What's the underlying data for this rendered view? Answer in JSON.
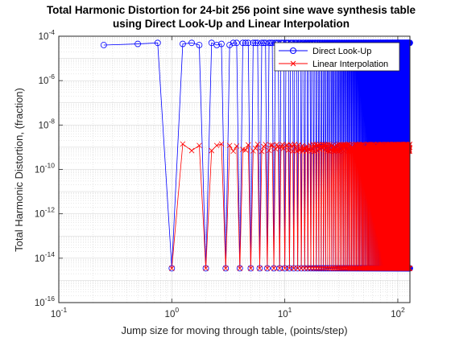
{
  "chart_data": {
    "type": "line",
    "title_line1": "Total Harmonic Distortion for 24-bit 256 point sine wave synthesis table",
    "title_line2": "using Direct Look-Up and Linear Interpolation",
    "xlabel": "Jump size for moving through table, (points/step)",
    "ylabel": "Total Harmonic Distortion, (fraction)",
    "xscale": "log",
    "yscale": "log",
    "xlim": [
      0.1,
      128
    ],
    "ylim": [
      1e-16,
      0.0001
    ],
    "x_ticks": [
      {
        "value": 0.1,
        "label": "10",
        "exp": "-1"
      },
      {
        "value": 1,
        "label": "10",
        "exp": "0"
      },
      {
        "value": 10,
        "label": "10",
        "exp": "1"
      },
      {
        "value": 100,
        "label": "10",
        "exp": "2"
      }
    ],
    "y_ticks": [
      {
        "value": 1e-16,
        "label": "10",
        "exp": "-16"
      },
      {
        "value": 1e-14,
        "label": "10",
        "exp": "-14"
      },
      {
        "value": 1e-12,
        "label": "10",
        "exp": "-12"
      },
      {
        "value": 1e-10,
        "label": "10",
        "exp": "-10"
      },
      {
        "value": 1e-08,
        "label": "10",
        "exp": "-8"
      },
      {
        "value": 1e-06,
        "label": "10",
        "exp": "-6"
      },
      {
        "value": 0.0001,
        "label": "10",
        "exp": "-4"
      }
    ],
    "grid": true,
    "minor_grid": true,
    "legend_position": "top-right",
    "series": [
      {
        "name": "Direct Look-Up",
        "color": "#0000ff",
        "marker": "circle",
        "description_of_pattern": "sample at every quarter step from 0.25 to 128; integer jump sizes give ~3.5e-15, others ~3e-5 to 5e-5",
        "low_value": 3.5e-15,
        "high_values_first": [
          5e-05,
          4e-05,
          4.5e-05
        ],
        "high_values_after_1": [
          5e-05,
          4e-05,
          4.5e-05
        ],
        "high_value": 5e-05
      },
      {
        "name": "Linear Interpolation",
        "color": "#ff0000",
        "marker": "x",
        "description_of_pattern": "starts at jump 1; integer jump sizes give ~3.5e-15, others ~7e-10 to 1.4e-9",
        "low_value": 3.5e-15,
        "high_values_after_1": [
          7e-10,
          1.2e-09,
          1.4e-09
        ],
        "high_value": 1e-09
      }
    ]
  }
}
